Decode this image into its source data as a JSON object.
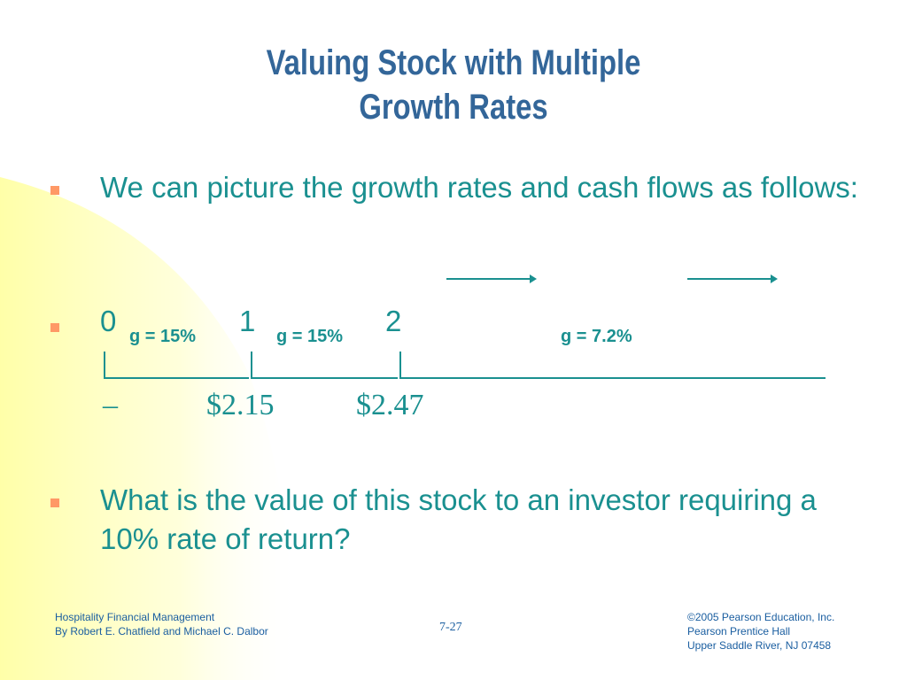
{
  "title": {
    "line1": "Valuing Stock with Multiple",
    "line2": "Growth Rates"
  },
  "bullets": {
    "first": "We can picture the growth rates and cash flows as follows:",
    "third": "What is the value of this stock to an investor requiring a 10% rate of return?"
  },
  "timeline": {
    "period0": "0",
    "period1": "1",
    "period2": "2",
    "growth_0_1": "g = 15%",
    "growth_1_2": "g = 15%",
    "growth_after": "g = 7.2%",
    "dash": "–",
    "cash_flow_1": "$2.15",
    "cash_flow_2": "$2.47"
  },
  "footer": {
    "left_line1": "Hospitality Financial Management",
    "left_line2": "By Robert E. Chatfield and Michael C. Dalbor",
    "page_number": "7-27",
    "right_line1": "©2005 Pearson Education, Inc.",
    "right_line2": "Pearson Prentice Hall",
    "right_line3": "Upper Saddle River, NJ 07458"
  },
  "colors": {
    "title": "#336699",
    "body_text": "#1a9090",
    "bullet": "#ff9966",
    "footer": "#1a5ea0",
    "wedge": "#ffffcc"
  }
}
